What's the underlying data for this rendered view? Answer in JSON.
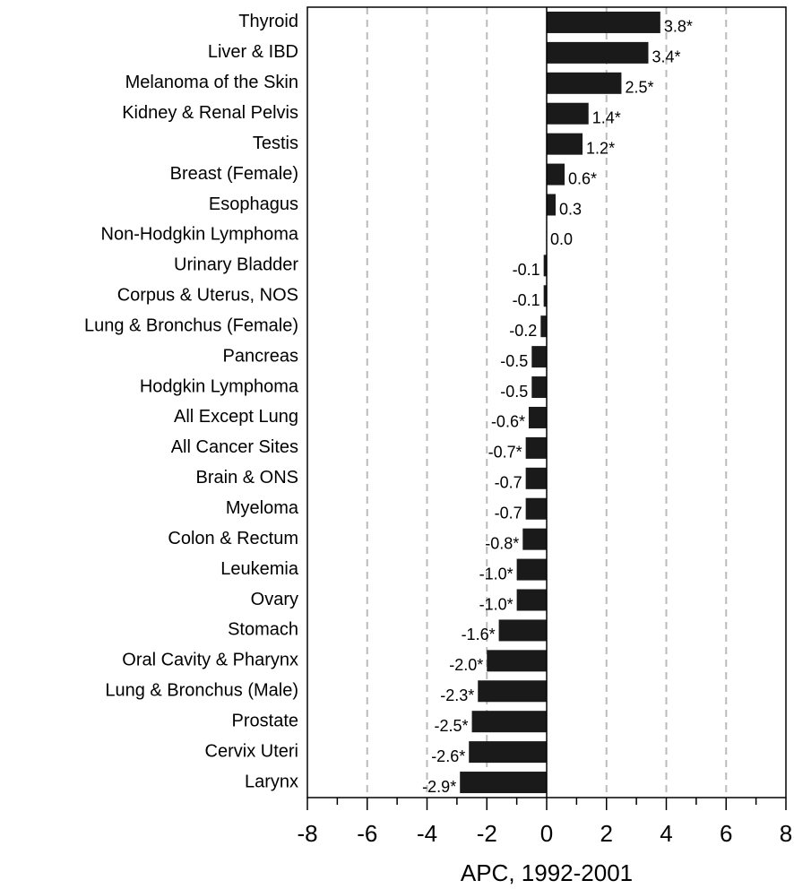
{
  "chart_data": {
    "type": "hbar",
    "categories": [
      "Thyroid",
      "Liver & IBD",
      "Melanoma of the Skin",
      "Kidney & Renal Pelvis",
      "Testis",
      "Breast (Female)",
      "Esophagus",
      "Non-Hodgkin Lymphoma",
      "Urinary Bladder",
      "Corpus & Uterus, NOS",
      "Lung & Bronchus (Female)",
      "Pancreas",
      "Hodgkin Lymphoma",
      "All Except Lung",
      "All Cancer Sites",
      "Brain & ONS",
      "Myeloma",
      "Colon & Rectum",
      "Leukemia",
      "Ovary",
      "Stomach",
      "Oral Cavity & Pharynx",
      "Lung & Bronchus (Male)",
      "Prostate",
      "Cervix Uteri",
      "Larynx"
    ],
    "values": [
      3.8,
      3.4,
      2.5,
      1.4,
      1.2,
      0.6,
      0.3,
      0.0,
      -0.1,
      -0.1,
      -0.2,
      -0.5,
      -0.5,
      -0.6,
      -0.7,
      -0.7,
      -0.7,
      -0.8,
      -1.0,
      -1.0,
      -1.6,
      -2.0,
      -2.3,
      -2.5,
      -2.6,
      -2.9
    ],
    "value_labels": [
      "3.8*",
      "3.4*",
      "2.5*",
      "1.4*",
      "1.2*",
      "0.6*",
      "0.3",
      "0.0",
      "-0.1",
      "-0.1",
      "-0.2",
      "-0.5",
      "-0.5",
      "-0.6*",
      "-0.7*",
      "-0.7",
      "-0.7",
      "-0.8*",
      "-1.0*",
      "-1.0*",
      "-1.6*",
      "-2.0*",
      "-2.3*",
      "-2.5*",
      "-2.6*",
      "-2.9*"
    ],
    "color": "#1a1a1a",
    "xlabel": "APC, 1992-2001",
    "xlim": [
      -8,
      8
    ],
    "xticks": [
      -8,
      -6,
      -4,
      -2,
      0,
      2,
      4,
      6,
      8
    ],
    "xticks_minor": [
      -7,
      -5,
      -3,
      -1,
      1,
      3,
      5,
      7
    ],
    "grid": true
  }
}
